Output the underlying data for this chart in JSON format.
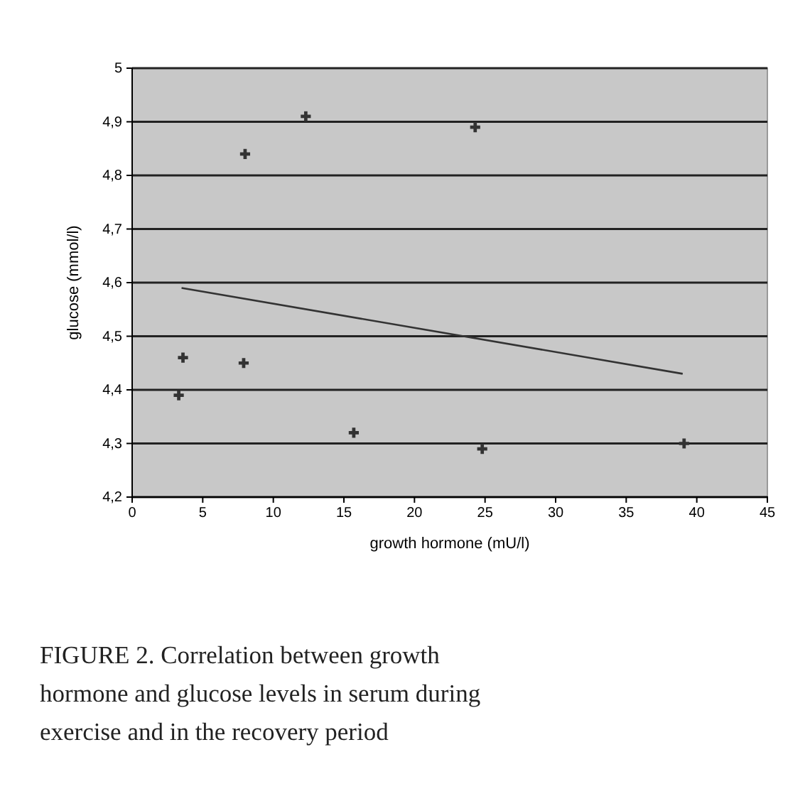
{
  "chart_data": {
    "type": "scatter",
    "xlabel": "growth hormone (mU/l)",
    "ylabel": "glucose (mmol/l)",
    "series": [
      {
        "color": "#333333",
        "x": [
          3.3,
          3.6,
          7.9,
          8.0,
          12.3,
          15.7,
          24.3,
          24.8,
          39.1
        ],
        "values": [
          4.39,
          4.46,
          4.45,
          4.84,
          4.91,
          4.32,
          4.89,
          4.29,
          4.3
        ]
      },
      {
        "type": "line",
        "marker": "none",
        "color": "#333333",
        "x": [
          3.5,
          39
        ],
        "values": [
          4.59,
          4.43
        ]
      }
    ],
    "xlim": [
      0,
      45
    ],
    "xticks": [
      0,
      5,
      10,
      15,
      20,
      25,
      30,
      35,
      40,
      45
    ],
    "ylim": [
      4.2,
      5
    ],
    "yticks": [
      {
        "value": 4.2,
        "label": "4,2"
      },
      {
        "value": 4.3,
        "label": "4,3"
      },
      {
        "value": 4.4,
        "label": "4,4"
      },
      {
        "value": 4.5,
        "label": "4,5"
      },
      {
        "value": 4.6,
        "label": "4,6"
      },
      {
        "value": 4.7,
        "label": "4,7"
      },
      {
        "value": 4.8,
        "label": "4,8"
      },
      {
        "value": 4.9,
        "label": "4,9"
      },
      {
        "value": 5,
        "label": "5"
      }
    ],
    "grid": "y",
    "marker": "cross",
    "annotations": [
      "FIGURE 2.  Correlation between growth hormone and glucose levels in serum during exercise and in the recovery period"
    ]
  }
}
